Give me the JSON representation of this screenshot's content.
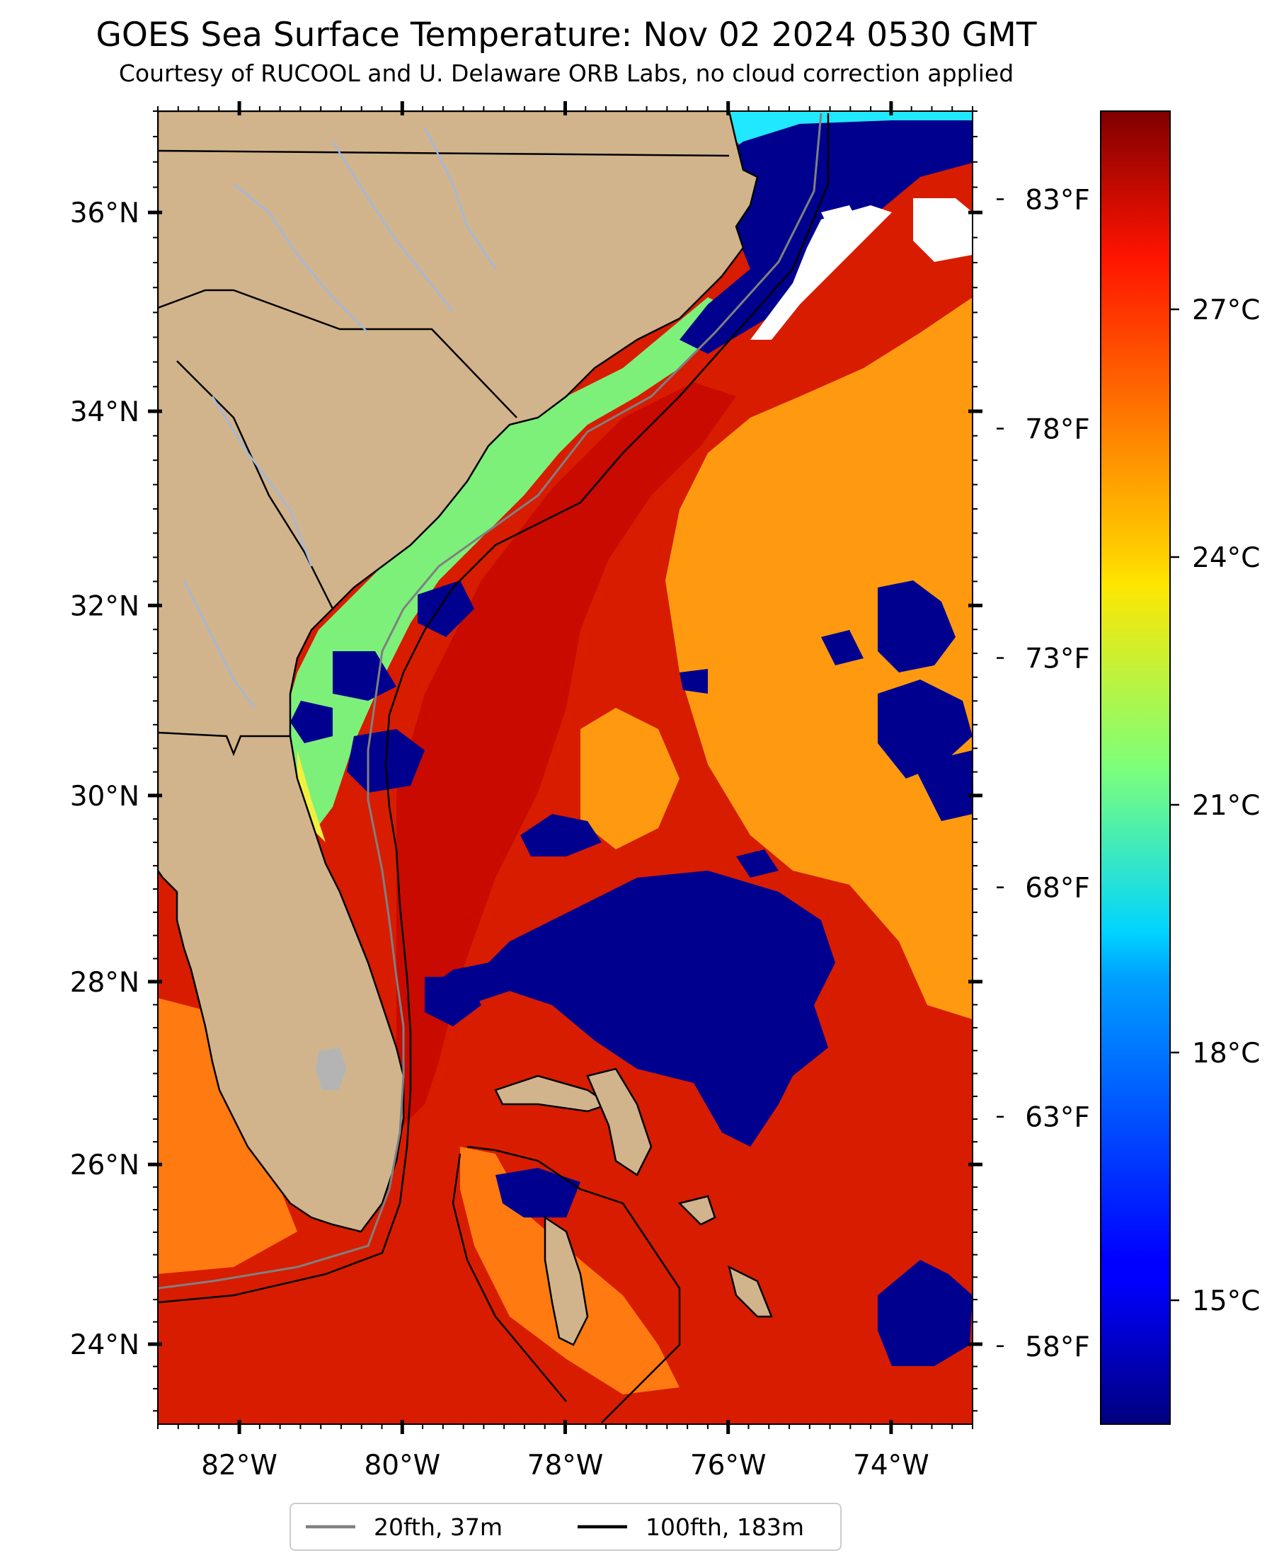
{
  "title": "GOES Sea Surface Temperature: Nov 02 2024 0530 GMT",
  "subtitle": "Courtesy of RUCOOL and U. Delaware ORB Labs, no cloud correction applied",
  "map": {
    "projection": "mercator",
    "lon_range": [
      -83,
      -73
    ],
    "lat_range": [
      23.1,
      37.0
    ],
    "lat_ticks": [
      {
        "value": 36,
        "label": "36°N"
      },
      {
        "value": 34,
        "label": "34°N"
      },
      {
        "value": 32,
        "label": "32°N"
      },
      {
        "value": 30,
        "label": "30°N"
      },
      {
        "value": 28,
        "label": "28°N"
      },
      {
        "value": 26,
        "label": "26°N"
      },
      {
        "value": 24,
        "label": "24°N"
      }
    ],
    "lon_ticks": [
      {
        "value": -82,
        "label": "82°W"
      },
      {
        "value": -80,
        "label": "80°W"
      },
      {
        "value": -78,
        "label": "78°W"
      },
      {
        "value": -76,
        "label": "76°W"
      },
      {
        "value": -74,
        "label": "74°W"
      }
    ],
    "fahrenheit_ticks": [
      {
        "value": 83,
        "label": "83°F"
      },
      {
        "value": 78,
        "label": "78°F"
      },
      {
        "value": 73,
        "label": "73°F"
      },
      {
        "value": 68,
        "label": "68°F"
      },
      {
        "value": 63,
        "label": "63°F"
      },
      {
        "value": 58,
        "label": "58°F"
      }
    ],
    "colors": {
      "land": "#d2b48c",
      "warm_ocean": "#d81c00",
      "gulf_stream": "#c80a00",
      "offshore": "#ff9a10",
      "shelf": "#7df07a",
      "cloud": "#00008f",
      "no_data": "#ffffff",
      "lake": "#b4b4b4",
      "river": "#a0b8e0"
    }
  },
  "colorbar": {
    "colormap": "jet",
    "range_c": [
      13.5,
      29.4
    ],
    "ticks": [
      {
        "value": 27,
        "label": "27°C"
      },
      {
        "value": 24,
        "label": "24°C"
      },
      {
        "value": 21,
        "label": "21°C"
      },
      {
        "value": 18,
        "label": "18°C"
      },
      {
        "value": 15,
        "label": "15°C"
      }
    ]
  },
  "legend": {
    "placement": "bottom-center",
    "items": [
      {
        "label": "20fth, 37m",
        "color": "#808080"
      },
      {
        "label": "100fth, 183m",
        "color": "#000000"
      }
    ]
  }
}
